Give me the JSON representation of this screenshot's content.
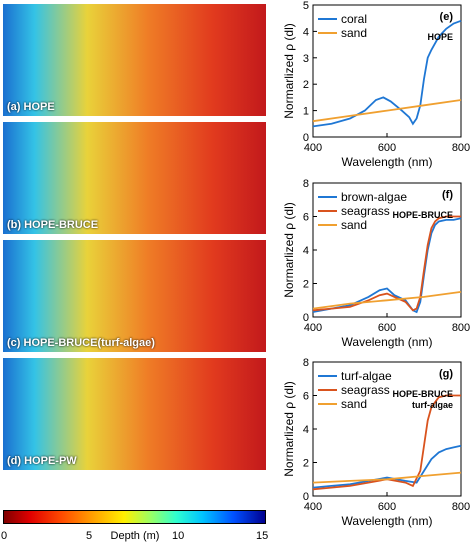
{
  "maps": [
    {
      "label": "(a) HOPE"
    },
    {
      "label": "(b) HOPE-BRUCE"
    },
    {
      "label": "(c) HOPE-BRUCE(turf-algae)"
    },
    {
      "label": "(d) HOPE-PW"
    }
  ],
  "colorbar": {
    "label": "Depth (m)",
    "ticks": [
      "0",
      "5",
      "10",
      "15"
    ],
    "range": [
      0,
      15
    ]
  },
  "chart_data": [
    {
      "type": "line",
      "panel_tag": "(e)",
      "annotation": [
        "HOPE"
      ],
      "xlabel": "Wavelength (nm)",
      "ylabel": "Normarlized ρ (dl)",
      "xlim": [
        400,
        800
      ],
      "ylim": [
        0,
        5
      ],
      "xticks": [
        "400",
        "600",
        "800"
      ],
      "yticks": [
        "0",
        "1",
        "2",
        "3",
        "4",
        "5"
      ],
      "legend_position": "top-left",
      "series": [
        {
          "name": "coral",
          "color": "#1f77d4",
          "x": [
            400,
            450,
            500,
            540,
            570,
            590,
            610,
            640,
            660,
            670,
            680,
            690,
            700,
            710,
            720,
            740,
            760,
            780,
            800
          ],
          "y": [
            0.4,
            0.5,
            0.7,
            1.0,
            1.4,
            1.5,
            1.35,
            1.0,
            0.75,
            0.5,
            0.7,
            1.2,
            2.2,
            3.0,
            3.3,
            3.8,
            4.1,
            4.3,
            4.4
          ]
        },
        {
          "name": "sand",
          "color": "#f0a030",
          "x": [
            400,
            500,
            600,
            700,
            800
          ],
          "y": [
            0.6,
            0.8,
            1.0,
            1.2,
            1.4
          ]
        }
      ]
    },
    {
      "type": "line",
      "panel_tag": "(f)",
      "annotation": [
        "HOPE-BRUCE"
      ],
      "xlabel": "Wavelength (nm)",
      "ylabel": "Normarlized ρ (dl)",
      "xlim": [
        400,
        800
      ],
      "ylim": [
        0,
        8
      ],
      "xticks": [
        "400",
        "600",
        "800"
      ],
      "yticks": [
        "0",
        "2",
        "4",
        "6",
        "8"
      ],
      "legend_position": "top-left",
      "series": [
        {
          "name": "brown-algae",
          "color": "#1f77d4",
          "x": [
            400,
            450,
            500,
            550,
            580,
            600,
            620,
            650,
            670,
            680,
            690,
            700,
            710,
            720,
            730,
            740,
            760,
            780,
            800
          ],
          "y": [
            0.3,
            0.5,
            0.7,
            1.2,
            1.6,
            1.7,
            1.3,
            1.0,
            0.4,
            0.3,
            0.9,
            2.5,
            4.0,
            5.0,
            5.5,
            5.7,
            5.8,
            5.8,
            5.9
          ]
        },
        {
          "name": "seagrass",
          "color": "#d9531e",
          "x": [
            400,
            450,
            500,
            550,
            580,
            600,
            620,
            650,
            670,
            680,
            690,
            700,
            710,
            720,
            730,
            740,
            760,
            780,
            800
          ],
          "y": [
            0.4,
            0.5,
            0.6,
            1.0,
            1.3,
            1.4,
            1.2,
            0.9,
            0.4,
            0.5,
            1.2,
            2.8,
            4.3,
            5.3,
            5.7,
            5.9,
            6.0,
            6.0,
            6.0
          ]
        },
        {
          "name": "sand",
          "color": "#f0a030",
          "x": [
            400,
            500,
            600,
            700,
            800
          ],
          "y": [
            0.5,
            0.8,
            1.0,
            1.2,
            1.5
          ]
        }
      ]
    },
    {
      "type": "line",
      "panel_tag": "(g)",
      "annotation": [
        "HOPE-BRUCE",
        "turf-algae"
      ],
      "xlabel": "Wavelength (nm)",
      "ylabel": "Normarlized ρ (dl)",
      "xlim": [
        400,
        800
      ],
      "ylim": [
        0,
        8
      ],
      "xticks": [
        "400",
        "600",
        "800"
      ],
      "yticks": [
        "0",
        "2",
        "4",
        "6",
        "8"
      ],
      "legend_position": "top-left",
      "series": [
        {
          "name": "turf-algae",
          "color": "#1f77d4",
          "x": [
            400,
            450,
            500,
            550,
            600,
            650,
            680,
            700,
            720,
            740,
            760,
            780,
            800
          ],
          "y": [
            0.5,
            0.6,
            0.7,
            0.9,
            1.1,
            0.9,
            0.8,
            1.5,
            2.2,
            2.6,
            2.8,
            2.9,
            3.0
          ]
        },
        {
          "name": "seagrass",
          "color": "#d9531e",
          "x": [
            400,
            450,
            500,
            550,
            600,
            650,
            670,
            690,
            700,
            710,
            720,
            740,
            760,
            780,
            800
          ],
          "y": [
            0.4,
            0.5,
            0.6,
            0.8,
            1.0,
            0.8,
            0.6,
            1.5,
            3.0,
            4.5,
            5.3,
            5.9,
            6.0,
            6.0,
            6.0
          ]
        },
        {
          "name": "sand",
          "color": "#f0a030",
          "x": [
            400,
            500,
            600,
            700,
            800
          ],
          "y": [
            0.8,
            0.9,
            1.0,
            1.2,
            1.4
          ]
        }
      ]
    }
  ]
}
